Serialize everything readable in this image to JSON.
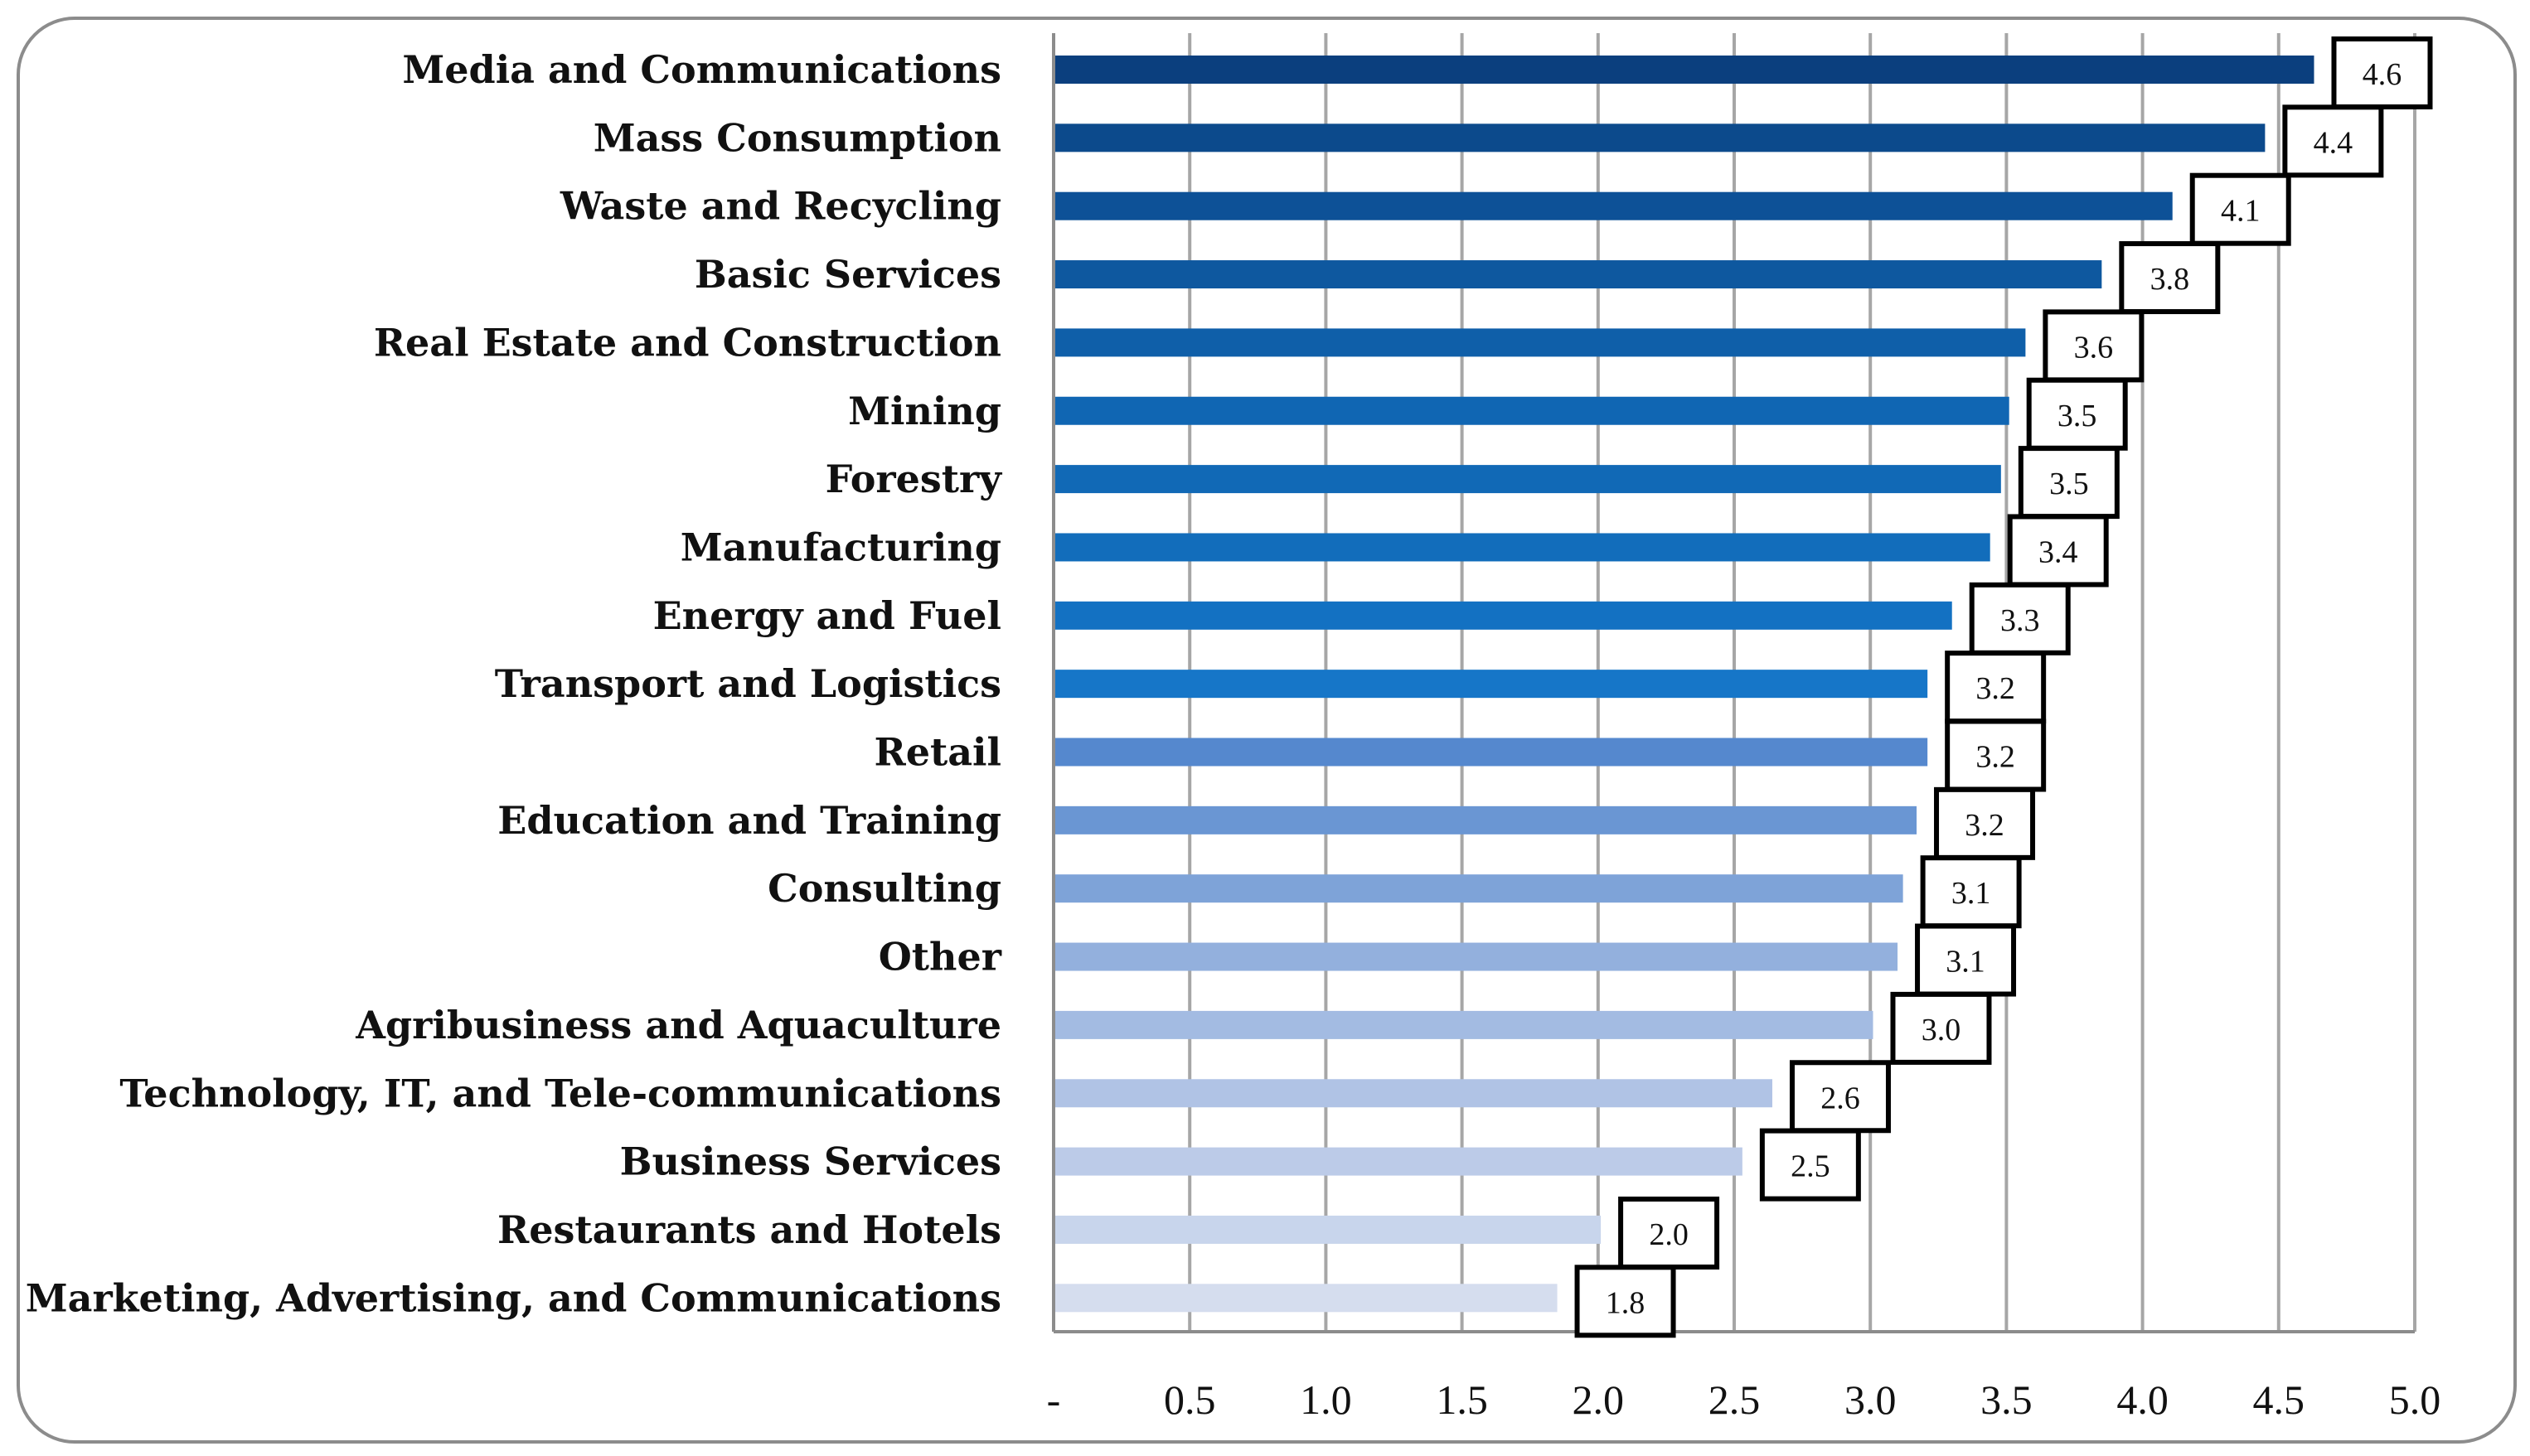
{
  "chart_data": {
    "type": "bar",
    "orientation": "horizontal",
    "title": "",
    "xlabel": "",
    "ylabel": "",
    "xlim": [
      0,
      5
    ],
    "grid": true,
    "legend": "none",
    "categories": [
      "Media and Communications",
      "Mass Consumption",
      "Waste and Recycling",
      "Basic Services",
      "Real Estate and Construction",
      "Mining",
      "Forestry",
      "Manufacturing",
      "Energy and Fuel",
      "Transport and Logistics",
      "Retail",
      "Education and Training",
      "Consulting",
      "Other",
      "Agribusiness and Aquaculture",
      "Technology, IT, and Tele-communications",
      "Business Services",
      "Restaurants and Hotels",
      "Marketing, Advertising, and Communications"
    ],
    "values": [
      4.63,
      4.45,
      4.11,
      3.85,
      3.57,
      3.51,
      3.48,
      3.44,
      3.3,
      3.21,
      3.21,
      3.17,
      3.12,
      3.1,
      3.01,
      2.64,
      2.53,
      2.01,
      1.85
    ],
    "value_labels": [
      "4.6",
      "4.4",
      "4.1",
      "3.8",
      "3.6",
      "3.5",
      "3.5",
      "3.4",
      "3.3",
      "3.2",
      "3.2",
      "3.2",
      "3.1",
      "3.1",
      "3.0",
      "2.6",
      "2.5",
      "2.0",
      "1.8"
    ],
    "bar_colors": [
      "#0b3f7e",
      "#0c4a8c",
      "#0d5197",
      "#0e589f",
      "#0f5fa9",
      "#1066b3",
      "#1169b6",
      "#126dbb",
      "#1371c2",
      "#1676c8",
      "#5588ce",
      "#6a96d3",
      "#7ea3d8",
      "#93b0dd",
      "#a3bbe2",
      "#b0c3e5",
      "#bccbe8",
      "#c8d5ec",
      "#d5ddee"
    ],
    "xtick_labels": [
      "-",
      "0.5",
      "1.0",
      "1.5",
      "2.0",
      "2.5",
      "3.0",
      "3.5",
      "4.0",
      "4.5",
      "5.0"
    ]
  }
}
